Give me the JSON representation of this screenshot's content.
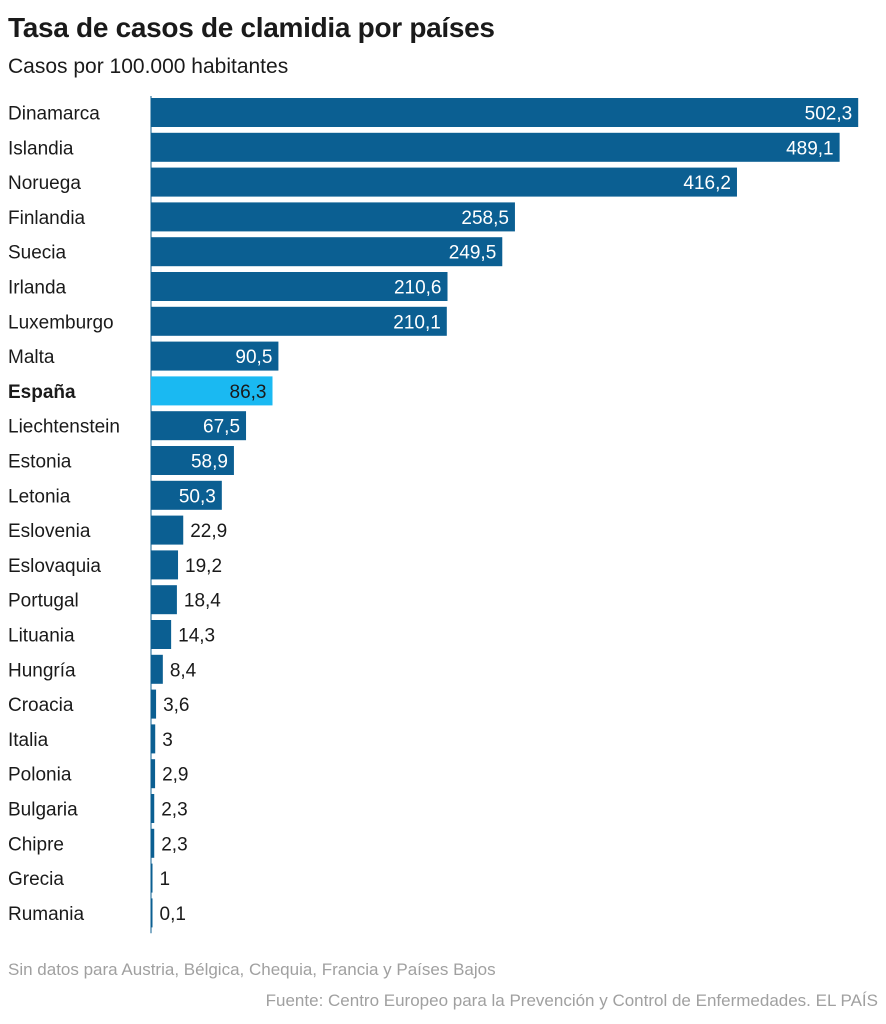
{
  "header": {
    "title": "Tasa de casos de clamidia por países",
    "subtitle": "Casos por 100.000 habitantes"
  },
  "footer": {
    "note": "Sin datos para Austria, Bélgica, Chequia, Francia y Países Bajos",
    "source": "Fuente: Centro Europeo para la Prevención y Control de Enfermedades. EL PAÍS"
  },
  "colors": {
    "bar": "#0b5f92",
    "highlight": "#1ab9f2",
    "value_inside": "#ffffff",
    "value_highlight": "#1a1a1a",
    "value_outside": "#1a1a1a"
  },
  "chart_data": {
    "type": "bar",
    "orientation": "horizontal",
    "title": "Tasa de casos de clamidia por países",
    "subtitle": "Casos por 100.000 habitantes",
    "highlight": "España",
    "categories": [
      "Dinamarca",
      "Islandia",
      "Noruega",
      "Finlandia",
      "Suecia",
      "Irlanda",
      "Luxemburgo",
      "Malta",
      "España",
      "Liechtenstein",
      "Estonia",
      "Letonia",
      "Eslovenia",
      "Eslovaquia",
      "Portugal",
      "Lituania",
      "Hungría",
      "Croacia",
      "Italia",
      "Polonia",
      "Bulgaria",
      "Chipre",
      "Grecia",
      "Rumania"
    ],
    "values": [
      502.3,
      489.1,
      416.2,
      258.5,
      249.5,
      210.6,
      210.1,
      90.5,
      86.3,
      67.5,
      58.9,
      50.3,
      22.9,
      19.2,
      18.4,
      14.3,
      8.4,
      3.6,
      3,
      2.9,
      2.3,
      2.3,
      1,
      0.1
    ],
    "value_labels": [
      "502,3",
      "489,1",
      "416,2",
      "258,5",
      "249,5",
      "210,6",
      "210,1",
      "90,5",
      "86,3",
      "67,5",
      "58,9",
      "50,3",
      "22,9",
      "19,2",
      "18,4",
      "14,3",
      "8,4",
      "3,6",
      "3",
      "2,9",
      "2,3",
      "2,3",
      "1",
      "0,1"
    ],
    "xlim": [
      0,
      505
    ],
    "grid": false,
    "legend": "none"
  }
}
